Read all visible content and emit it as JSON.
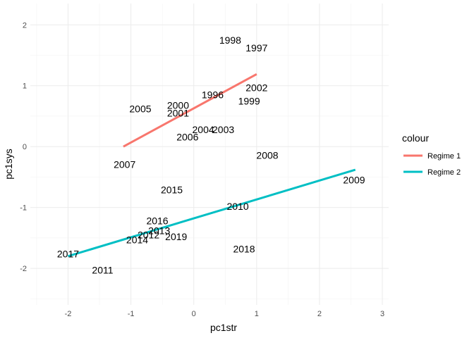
{
  "chart_data": {
    "type": "scatter",
    "xlabel": "pc1str",
    "ylabel": "pc1sys",
    "xlim": [
      -2.6,
      3.1
    ],
    "ylim": [
      -2.6,
      2.35
    ],
    "x_ticks": [
      -2,
      -1,
      0,
      1,
      2,
      3
    ],
    "y_ticks": [
      -2,
      -1,
      0,
      1,
      2
    ],
    "x_tick_labels": [
      "-2",
      "-1",
      "0",
      "1",
      "2",
      "3"
    ],
    "y_tick_labels": [
      "-2",
      "-1",
      "0",
      "1",
      "2"
    ],
    "grid": true,
    "legend_position": "right",
    "legend_title": "colour",
    "points": [
      {
        "label": "1996",
        "x": 0.3,
        "y": 0.85
      },
      {
        "label": "1997",
        "x": 1.0,
        "y": 1.62
      },
      {
        "label": "1998",
        "x": 0.58,
        "y": 1.75
      },
      {
        "label": "1999",
        "x": 0.88,
        "y": 0.75
      },
      {
        "label": "2000",
        "x": -0.25,
        "y": 0.68
      },
      {
        "label": "2001",
        "x": -0.25,
        "y": 0.55
      },
      {
        "label": "2002",
        "x": 1.0,
        "y": 0.97
      },
      {
        "label": "2003",
        "x": 0.47,
        "y": 0.28
      },
      {
        "label": "2004",
        "x": 0.15,
        "y": 0.28
      },
      {
        "label": "2005",
        "x": -0.85,
        "y": 0.62
      },
      {
        "label": "2006",
        "x": -0.1,
        "y": 0.16
      },
      {
        "label": "2007",
        "x": -1.1,
        "y": -0.29
      },
      {
        "label": "2008",
        "x": 1.17,
        "y": -0.14
      },
      {
        "label": "2009",
        "x": 2.55,
        "y": -0.55
      },
      {
        "label": "2010",
        "x": 0.7,
        "y": -0.98
      },
      {
        "label": "2011",
        "x": -1.45,
        "y": -2.03
      },
      {
        "label": "2012",
        "x": -0.72,
        "y": -1.45
      },
      {
        "label": "2013",
        "x": -0.55,
        "y": -1.38
      },
      {
        "label": "2014",
        "x": -0.9,
        "y": -1.53
      },
      {
        "label": "2015",
        "x": -0.35,
        "y": -0.71
      },
      {
        "label": "2016",
        "x": -0.58,
        "y": -1.22
      },
      {
        "label": "2017",
        "x": -2.0,
        "y": -1.76
      },
      {
        "label": "2018",
        "x": 0.8,
        "y": -1.68
      },
      {
        "label": "2019",
        "x": -0.28,
        "y": -1.48
      }
    ],
    "series": [
      {
        "name": "Regime 1",
        "color": "#F8766D",
        "line": [
          [
            -1.12,
            0.0
          ],
          [
            1.0,
            1.19
          ]
        ]
      },
      {
        "name": "Regime 2",
        "color": "#00BFC4",
        "line": [
          [
            -2.0,
            -1.8
          ],
          [
            2.57,
            -0.38
          ]
        ]
      }
    ]
  }
}
